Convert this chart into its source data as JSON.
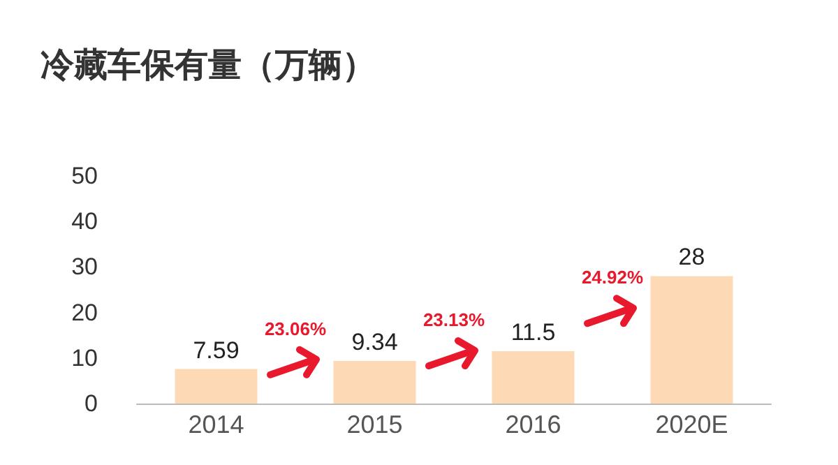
{
  "chart_data": {
    "type": "bar",
    "title": "冷藏车保有量（万辆）",
    "categories": [
      "2014",
      "2015",
      "2016",
      "2020E"
    ],
    "values": [
      7.59,
      9.34,
      11.5,
      28
    ],
    "color": "#fdd9b5",
    "ylim": [
      0,
      50
    ],
    "yticks": [
      0,
      10,
      20,
      30,
      40,
      50
    ],
    "grid": false,
    "data_labels": true,
    "annotations": [
      "23.06%",
      "23.13%",
      "24.92%"
    ]
  }
}
